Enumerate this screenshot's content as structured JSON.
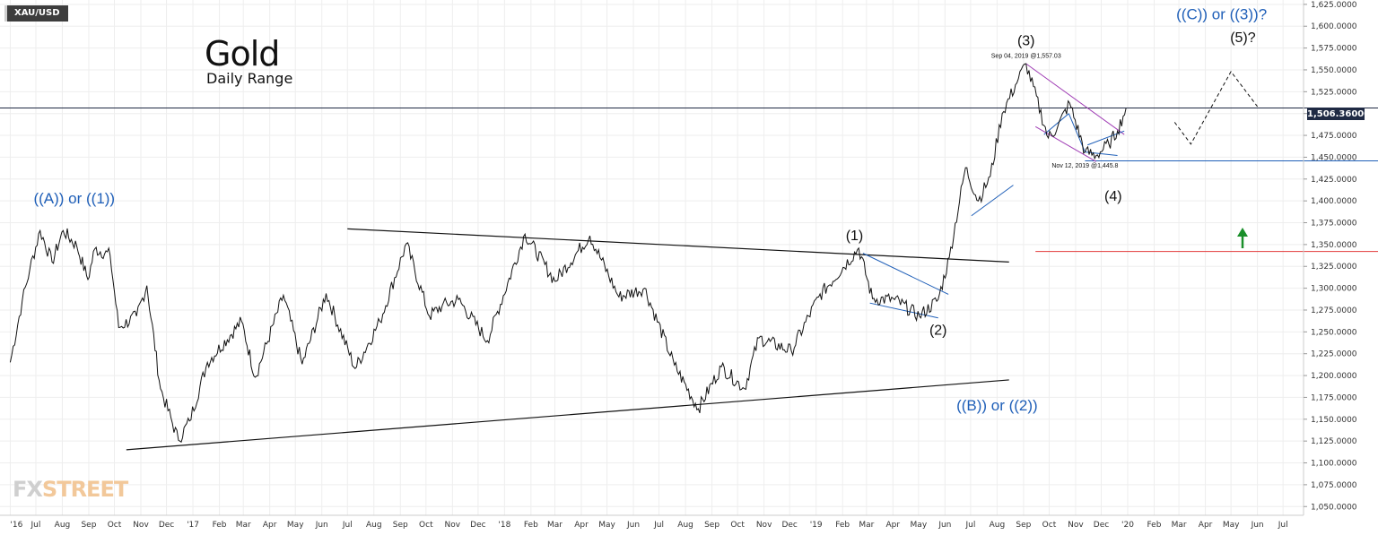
{
  "header": {
    "symbol": "XAU/USD",
    "title": "Gold",
    "subtitle": "Daily Range"
  },
  "logo": {
    "fx": "FX",
    "street": "STREET"
  },
  "price_tag": "1,506.36000",
  "colors": {
    "price": "#111111",
    "blue": "#1f5fb8",
    "magenta": "#a03db5",
    "red": "#e23a3a",
    "green": "#1a8f2a",
    "current_line": "#1f2a44",
    "grid": "#eeeeee"
  },
  "chart_data": {
    "type": "line",
    "title": "Gold",
    "subtitle": "Daily Range",
    "symbol": "XAU/USD",
    "ylim": [
      1040,
      1630
    ],
    "y_ticks": [
      "1,625.0000",
      "1,600.0000",
      "1,575.0000",
      "1,550.0000",
      "1,525.0000",
      "1,500.0000",
      "1,475.0000",
      "1,450.0000",
      "1,425.0000",
      "1,400.0000",
      "1,375.0000",
      "1,350.0000",
      "1,325.0000",
      "1,300.0000",
      "1,275.0000",
      "1,250.0000",
      "1,225.0000",
      "1,200.0000",
      "1,175.0000",
      "1,150.0000",
      "1,125.0000",
      "1,100.0000",
      "1,075.0000",
      "1,050.0000"
    ],
    "x_ticks": [
      "'16",
      "Jul",
      "Aug",
      "Sep",
      "Oct",
      "Nov",
      "Dec",
      "'17",
      "Feb",
      "Mar",
      "Apr",
      "May",
      "Jun",
      "Jul",
      "Aug",
      "Sep",
      "Oct",
      "Nov",
      "Dec",
      "'18",
      "Feb",
      "Mar",
      "Apr",
      "May",
      "Jun",
      "Jul",
      "Aug",
      "Sep",
      "Oct",
      "Nov",
      "Dec",
      "'19",
      "Feb",
      "Mar",
      "Apr",
      "May",
      "Jun",
      "Jul",
      "Aug",
      "Sep",
      "Oct",
      "Nov",
      "Dec",
      "'20",
      "Feb",
      "Mar",
      "Apr",
      "May",
      "Jun",
      "Jul"
    ],
    "current_price": 1506.36,
    "series": [
      {
        "values": [
          [
            "2016-06-01",
            1215
          ],
          [
            "2016-06-15",
            1285
          ],
          [
            "2016-06-24",
            1322
          ],
          [
            "2016-07-06",
            1366
          ],
          [
            "2016-07-20",
            1330
          ],
          [
            "2016-08-02",
            1366
          ],
          [
            "2016-08-18",
            1348
          ],
          [
            "2016-08-31",
            1310
          ],
          [
            "2016-09-08",
            1345
          ],
          [
            "2016-09-26",
            1338
          ],
          [
            "2016-10-06",
            1255
          ],
          [
            "2016-10-27",
            1268
          ],
          [
            "2016-11-08",
            1303
          ],
          [
            "2016-11-24",
            1185
          ],
          [
            "2016-12-15",
            1126
          ],
          [
            "2016-12-28",
            1148
          ],
          [
            "2017-01-18",
            1215
          ],
          [
            "2017-02-27",
            1262
          ],
          [
            "2017-03-15",
            1198
          ],
          [
            "2017-04-17",
            1292
          ],
          [
            "2017-05-09",
            1213
          ],
          [
            "2017-06-06",
            1294
          ],
          [
            "2017-07-10",
            1208
          ],
          [
            "2017-08-08",
            1262
          ],
          [
            "2017-09-08",
            1351
          ],
          [
            "2017-10-05",
            1268
          ],
          [
            "2017-10-20",
            1280
          ],
          [
            "2017-11-08",
            1287
          ],
          [
            "2017-12-12",
            1240
          ],
          [
            "2018-01-25",
            1362
          ],
          [
            "2018-03-01",
            1308
          ],
          [
            "2018-04-11",
            1360
          ],
          [
            "2018-05-15",
            1290
          ],
          [
            "2018-06-14",
            1300
          ],
          [
            "2018-07-19",
            1212
          ],
          [
            "2018-08-16",
            1162
          ],
          [
            "2018-09-12",
            1210
          ],
          [
            "2018-10-09",
            1185
          ],
          [
            "2018-10-26",
            1243
          ],
          [
            "2018-12-03",
            1228
          ],
          [
            "2019-01-04",
            1290
          ],
          [
            "2019-02-20",
            1346
          ],
          [
            "2019-03-08",
            1288
          ],
          [
            "2019-04-03",
            1287
          ],
          [
            "2019-05-02",
            1268
          ],
          [
            "2019-05-24",
            1287
          ],
          [
            "2019-06-06",
            1335
          ],
          [
            "2019-06-25",
            1438
          ],
          [
            "2019-07-10",
            1400
          ],
          [
            "2019-07-24",
            1428
          ],
          [
            "2019-08-07",
            1500
          ],
          [
            "2019-08-26",
            1540
          ],
          [
            "2019-09-04",
            1557
          ],
          [
            "2019-09-30",
            1472
          ],
          [
            "2019-10-11",
            1485
          ],
          [
            "2019-10-25",
            1512
          ],
          [
            "2019-11-12",
            1456
          ],
          [
            "2019-11-25",
            1452
          ],
          [
            "2019-12-10",
            1465
          ],
          [
            "2019-12-20",
            1480
          ],
          [
            "2019-12-30",
            1506
          ]
        ]
      }
    ],
    "projection": [
      [
        "2020-02-25",
        1490
      ],
      [
        "2020-03-15",
        1465
      ],
      [
        "2020-05-01",
        1548
      ],
      [
        "2020-06-01",
        1508
      ]
    ],
    "horizontal_levels": [
      {
        "value": 1506.36,
        "color": "#1f2a44"
      },
      {
        "value": 1445.8,
        "color": "#1f5fb8"
      },
      {
        "value": 1342,
        "color": "#e23a3a"
      }
    ],
    "trendlines": [
      {
        "from": [
          "2016-10-15",
          1115
        ],
        "to": [
          "2019-08-15",
          1195
        ],
        "color": "#111111"
      },
      {
        "from": [
          "2017-07-01",
          1368
        ],
        "to": [
          "2019-08-15",
          1330
        ],
        "color": "#111111"
      }
    ],
    "annotations": [
      {
        "text": "((A)) or ((1))",
        "x": "2016-08-15",
        "y": 1397,
        "color": "#1f5fb8",
        "size": 17
      },
      {
        "text": "((B)) or ((2))",
        "x": "2019-08-01",
        "y": 1160,
        "color": "#1f5fb8",
        "size": 17
      },
      {
        "text": "((C)) or ((3))?",
        "x": "2020-04-20",
        "y": 1608,
        "color": "#1f5fb8",
        "size": 17
      },
      {
        "text": "(1)",
        "x": "2019-02-15",
        "y": 1355,
        "color": "#111111",
        "size": 16
      },
      {
        "text": "(2)",
        "x": "2019-05-24",
        "y": 1247,
        "color": "#111111",
        "size": 16
      },
      {
        "text": "(3)",
        "x": "2019-09-04",
        "y": 1578,
        "color": "#111111",
        "size": 16
      },
      {
        "text": "(4)",
        "x": "2019-12-15",
        "y": 1400,
        "color": "#111111",
        "size": 16
      },
      {
        "text": "(5)?",
        "x": "2020-05-15",
        "y": 1582,
        "color": "#111111",
        "size": 16
      },
      {
        "text": "Sep 04, 2019 @1,557.03",
        "x": "2019-09-04",
        "y": 1564,
        "color": "#111111",
        "size": 7
      },
      {
        "text": "Nov 12, 2019 @1,445.8",
        "x": "2019-11-12",
        "y": 1438,
        "color": "#111111",
        "size": 7
      }
    ],
    "grid": true,
    "date_range": [
      "2016-05-20",
      "2020-07-25"
    ]
  }
}
